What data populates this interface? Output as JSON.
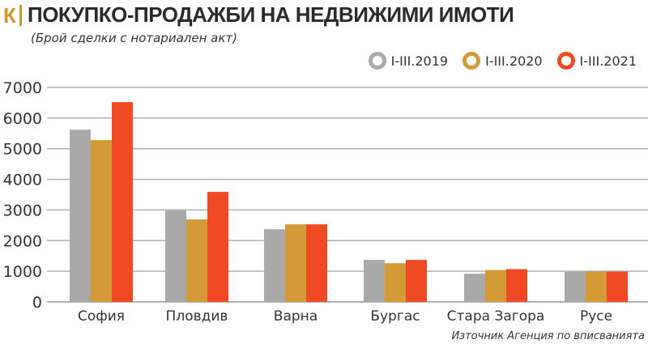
{
  "header": {
    "logo": "К",
    "title": "ПОКУПКО-ПРОДАЖБИ НА НЕДВИЖИМИ ИМОТИ",
    "subtitle": "(Брой сделки с нотариален акт)",
    "source": "Източник Агенция по вписванията"
  },
  "chart_data": {
    "type": "bar",
    "title": "ПОКУПКО-ПРОДАЖБИ НА НЕДВИЖИМИ ИМОТИ",
    "subtitle": "(Брой сделки с нотариален акт)",
    "categories": [
      "София",
      "Пловдив",
      "Варна",
      "Бургас",
      "Стара Загора",
      "Русе"
    ],
    "series": [
      {
        "name": "I-III.2019",
        "color": "#a9a9a9",
        "values": [
          5620,
          2980,
          2370,
          1370,
          920,
          980
        ]
      },
      {
        "name": "I-III.2020",
        "color": "#d49a35",
        "values": [
          5280,
          2690,
          2530,
          1260,
          1040,
          990
        ]
      },
      {
        "name": "I-III.2021",
        "color": "#ee4b24",
        "values": [
          6520,
          3590,
          2530,
          1370,
          1070,
          990
        ]
      }
    ],
    "ylim": [
      0,
      7000
    ],
    "yticks": [
      0,
      1000,
      2000,
      3000,
      4000,
      5000,
      6000,
      7000
    ],
    "grid": true,
    "legend": "top-right"
  }
}
